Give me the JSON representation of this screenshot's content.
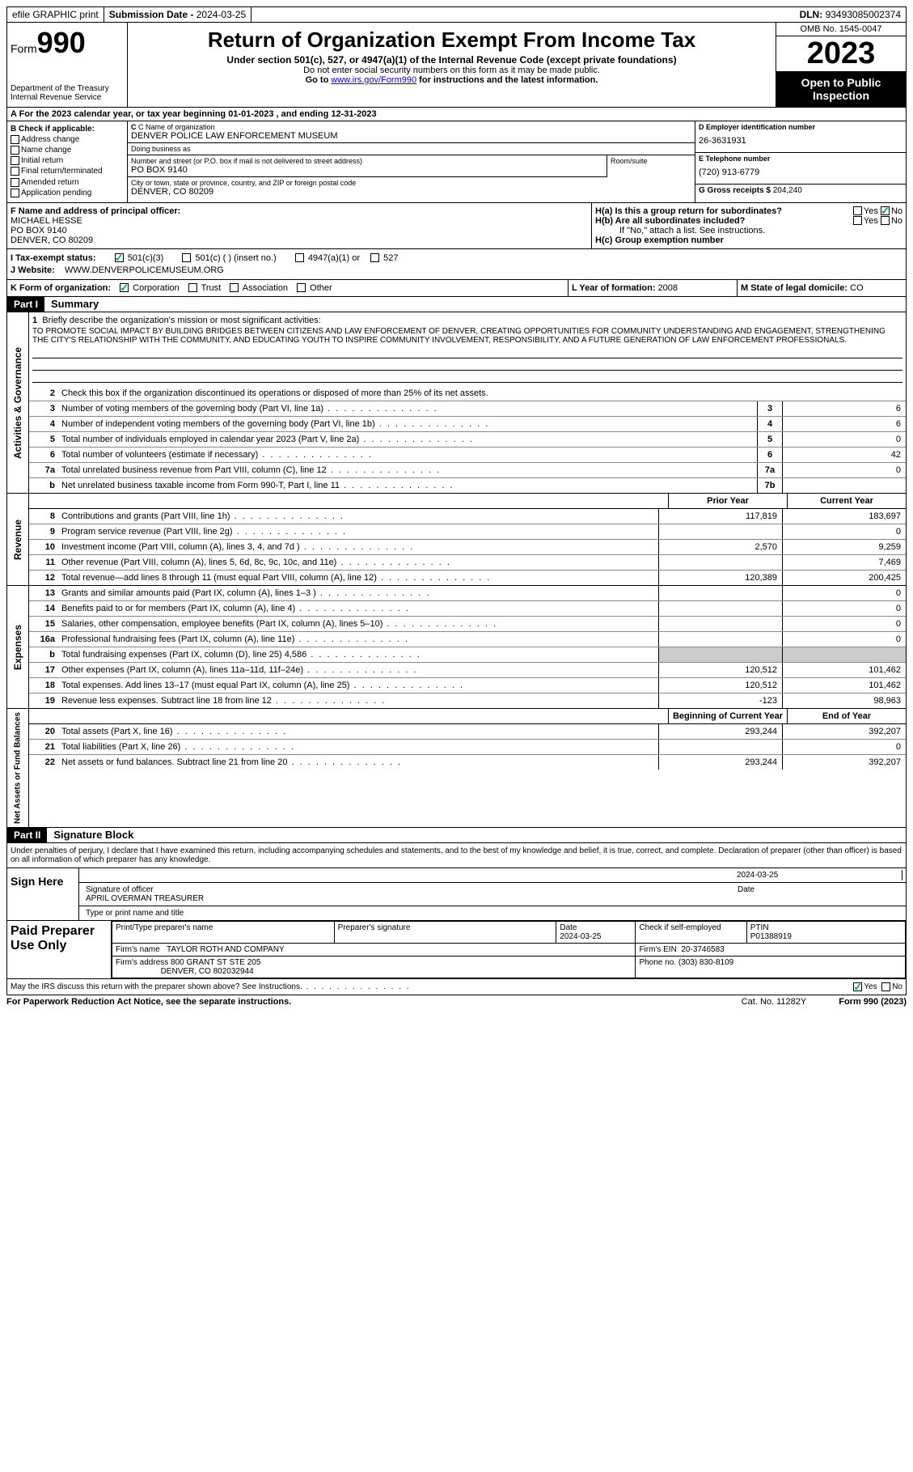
{
  "topbar": {
    "efile": "efile GRAPHIC print",
    "submission_label": "Submission Date - ",
    "submission_date": "2024-03-25",
    "dln_label": "DLN: ",
    "dln": "93493085002374"
  },
  "header": {
    "form_label": "Form",
    "form_number": "990",
    "dept": "Department of the Treasury Internal Revenue Service",
    "title": "Return of Organization Exempt From Income Tax",
    "subtitle": "Under section 501(c), 527, or 4947(a)(1) of the Internal Revenue Code (except private foundations)",
    "warning": "Do not enter social security numbers on this form as it may be made public.",
    "goto": "Go to ",
    "goto_link": "www.irs.gov/Form990",
    "goto_suffix": " for instructions and the latest information.",
    "omb": "OMB No. 1545-0047",
    "year": "2023",
    "inspection": "Open to Public Inspection"
  },
  "row_a": "A For the 2023 calendar year, or tax year beginning 01-01-2023   , and ending 12-31-2023",
  "section_b": {
    "check_label": "B Check if applicable:",
    "checks": [
      "Address change",
      "Name change",
      "Initial return",
      "Final return/terminated",
      "Amended return",
      "Application pending"
    ],
    "c_label": "C Name of organization",
    "org_name": "DENVER POLICE LAW ENFORCEMENT MUSEUM",
    "dba_label": "Doing business as",
    "dba": "",
    "addr_label": "Number and street (or P.O. box if mail is not delivered to street address)",
    "addr": "PO BOX 9140",
    "room_label": "Room/suite",
    "city_label": "City or town, state or province, country, and ZIP or foreign postal code",
    "city": "DENVER, CO  80209",
    "d_label": "D Employer identification number",
    "ein": "26-3631931",
    "e_label": "E Telephone number",
    "phone": "(720) 913-6779",
    "g_label": "G Gross receipts $ ",
    "gross": "204,240"
  },
  "row_f": {
    "f_label": "F  Name and address of principal officer:",
    "officer_name": "MICHAEL HESSE",
    "officer_addr1": "PO BOX 9140",
    "officer_addr2": "DENVER, CO  80209",
    "ha_label": "H(a)  Is this a group return for subordinates?",
    "hb_label": "H(b)  Are all subordinates included?",
    "hb_note": "If \"No,\" attach a list. See instructions.",
    "hc_label": "H(c)  Group exemption number",
    "yes": "Yes",
    "no": "No"
  },
  "row_i": {
    "label": "I   Tax-exempt status:",
    "opt1": "501(c)(3)",
    "opt2": "501(c) (  ) (insert no.)",
    "opt3": "4947(a)(1) or",
    "opt4": "527"
  },
  "row_j": {
    "label": "J   Website:",
    "value": "WWW.DENVERPOLICEMUSEUM.ORG"
  },
  "row_k": {
    "label": "K Form of organization:",
    "opts": [
      "Corporation",
      "Trust",
      "Association",
      "Other"
    ],
    "l_label": "L Year of formation: ",
    "l_val": "2008",
    "m_label": "M State of legal domicile: ",
    "m_val": "CO"
  },
  "part1": {
    "header": "Part I",
    "title": "Summary",
    "line1_label": "Briefly describe the organization's mission or most significant activities:",
    "mission": "TO PROMOTE SOCIAL IMPACT BY BUILDING BRIDGES BETWEEN CITIZENS AND LAW ENFORCEMENT OF DENVER, CREATING OPPORTUNITIES FOR COMMUNITY UNDERSTANDING AND ENGAGEMENT, STRENGTHENING THE CITY'S RELATIONSHIP WITH THE COMMUNITY, AND EDUCATING YOUTH TO INSPIRE COMMUNITY INVOLVEMENT, RESPONSIBILITY, AND A FUTURE GENERATION OF LAW ENFORCEMENT PROFESSIONALS.",
    "line2": "Check this box      if the organization discontinued its operations or disposed of more than 25% of its net assets.",
    "governance_label": "Activities & Governance",
    "revenue_label": "Revenue",
    "expenses_label": "Expenses",
    "netassets_label": "Net Assets or Fund Balances",
    "lines_top": [
      {
        "n": "3",
        "text": "Number of voting members of the governing body (Part VI, line 1a)",
        "box": "3",
        "val": "6"
      },
      {
        "n": "4",
        "text": "Number of independent voting members of the governing body (Part VI, line 1b)",
        "box": "4",
        "val": "6"
      },
      {
        "n": "5",
        "text": "Total number of individuals employed in calendar year 2023 (Part V, line 2a)",
        "box": "5",
        "val": "0"
      },
      {
        "n": "6",
        "text": "Total number of volunteers (estimate if necessary)",
        "box": "6",
        "val": "42"
      },
      {
        "n": "7a",
        "text": "Total unrelated business revenue from Part VIII, column (C), line 12",
        "box": "7a",
        "val": "0"
      },
      {
        "n": "b",
        "text": "Net unrelated business taxable income from Form 990-T, Part I, line 11",
        "box": "7b",
        "val": ""
      }
    ],
    "prior_year": "Prior Year",
    "current_year": "Current Year",
    "lines_rev": [
      {
        "n": "8",
        "text": "Contributions and grants (Part VIII, line 1h)",
        "py": "117,819",
        "cy": "183,697"
      },
      {
        "n": "9",
        "text": "Program service revenue (Part VIII, line 2g)",
        "py": "",
        "cy": "0"
      },
      {
        "n": "10",
        "text": "Investment income (Part VIII, column (A), lines 3, 4, and 7d )",
        "py": "2,570",
        "cy": "9,259"
      },
      {
        "n": "11",
        "text": "Other revenue (Part VIII, column (A), lines 5, 6d, 8c, 9c, 10c, and 11e)",
        "py": "",
        "cy": "7,469"
      },
      {
        "n": "12",
        "text": "Total revenue—add lines 8 through 11 (must equal Part VIII, column (A), line 12)",
        "py": "120,389",
        "cy": "200,425"
      }
    ],
    "lines_exp": [
      {
        "n": "13",
        "text": "Grants and similar amounts paid (Part IX, column (A), lines 1–3 )",
        "py": "",
        "cy": "0"
      },
      {
        "n": "14",
        "text": "Benefits paid to or for members (Part IX, column (A), line 4)",
        "py": "",
        "cy": "0"
      },
      {
        "n": "15",
        "text": "Salaries, other compensation, employee benefits (Part IX, column (A), lines 5–10)",
        "py": "",
        "cy": "0"
      },
      {
        "n": "16a",
        "text": "Professional fundraising fees (Part IX, column (A), line 11e)",
        "py": "",
        "cy": "0"
      },
      {
        "n": "b",
        "text": "Total fundraising expenses (Part IX, column (D), line 25) 4,586",
        "py": "shaded",
        "cy": "shaded"
      },
      {
        "n": "17",
        "text": "Other expenses (Part IX, column (A), lines 11a–11d, 11f–24e)",
        "py": "120,512",
        "cy": "101,462"
      },
      {
        "n": "18",
        "text": "Total expenses. Add lines 13–17 (must equal Part IX, column (A), line 25)",
        "py": "120,512",
        "cy": "101,462"
      },
      {
        "n": "19",
        "text": "Revenue less expenses. Subtract line 18 from line 12",
        "py": "-123",
        "cy": "98,963"
      }
    ],
    "begin_year": "Beginning of Current Year",
    "end_year": "End of Year",
    "lines_net": [
      {
        "n": "20",
        "text": "Total assets (Part X, line 16)",
        "py": "293,244",
        "cy": "392,207"
      },
      {
        "n": "21",
        "text": "Total liabilities (Part X, line 26)",
        "py": "",
        "cy": "0"
      },
      {
        "n": "22",
        "text": "Net assets or fund balances. Subtract line 21 from line 20",
        "py": "293,244",
        "cy": "392,207"
      }
    ]
  },
  "part2": {
    "header": "Part II",
    "title": "Signature Block",
    "declaration": "Under penalties of perjury, I declare that I have examined this return, including accompanying schedules and statements, and to the best of my knowledge and belief, it is true, correct, and complete. Declaration of preparer (other than officer) is based on all information of which preparer has any knowledge.",
    "sign_here": "Sign Here",
    "sig_officer_label": "Signature of officer",
    "officer": "APRIL OVERMAN  TREASURER",
    "type_label": "Type or print name and title",
    "date_label": "Date",
    "date": "2024-03-25",
    "paid_label": "Paid Preparer Use Only",
    "prep_name_label": "Print/Type preparer's name",
    "prep_sig_label": "Preparer's signature",
    "prep_date": "2024-03-25",
    "check_label": "Check      if self-employed",
    "ptin_label": "PTIN",
    "ptin": "P01388919",
    "firm_name_label": "Firm's name",
    "firm_name": "TAYLOR ROTH AND COMPANY",
    "firm_ein_label": "Firm's EIN",
    "firm_ein": "20-3746583",
    "firm_addr_label": "Firm's address",
    "firm_addr1": "800 GRANT ST STE 205",
    "firm_addr2": "DENVER, CO  802032944",
    "phone_label": "Phone no. ",
    "phone": "(303) 830-8109",
    "discuss": "May the IRS discuss this return with the preparer shown above? See Instructions."
  },
  "footer": {
    "paperwork": "For Paperwork Reduction Act Notice, see the separate instructions.",
    "cat": "Cat. No. 11282Y",
    "form": "Form 990 (2023)"
  }
}
